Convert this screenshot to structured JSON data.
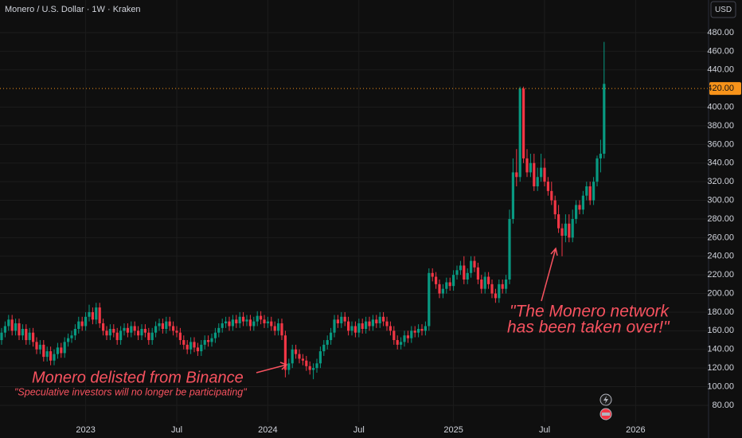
{
  "chart_data": {
    "type": "candlestick",
    "title": "Monero / U.S. Dollar · 1W · Kraken",
    "currency": "USD",
    "up_color": "#089981",
    "down_color": "#f23645",
    "grid": true,
    "ylim": [
      62,
      515
    ],
    "yticks": [
      {
        "value": 80,
        "label": "80.00"
      },
      {
        "value": 100,
        "label": "100.00"
      },
      {
        "value": 120,
        "label": "120.00"
      },
      {
        "value": 140,
        "label": "140.00"
      },
      {
        "value": 160,
        "label": "160.00"
      },
      {
        "value": 180,
        "label": "180.00"
      },
      {
        "value": 200,
        "label": "200.00"
      },
      {
        "value": 220,
        "label": "220.00"
      },
      {
        "value": 240,
        "label": "240.00"
      },
      {
        "value": 260,
        "label": "260.00"
      },
      {
        "value": 280,
        "label": "280.00"
      },
      {
        "value": 300,
        "label": "300.00"
      },
      {
        "value": 320,
        "label": "320.00"
      },
      {
        "value": 340,
        "label": "340.00"
      },
      {
        "value": 360,
        "label": "360.00"
      },
      {
        "value": 380,
        "label": "380.00"
      },
      {
        "value": 400,
        "label": "400.00"
      },
      {
        "value": 440,
        "label": "440.00"
      },
      {
        "value": 460,
        "label": "460.00"
      },
      {
        "value": 480,
        "label": "480.00"
      }
    ],
    "price_line": {
      "value": 420,
      "label": "420.00",
      "color": "#f7931a"
    },
    "annotations": [
      "Monero delisted from Binance",
      "\"Speculative investors will no longer be participating\"",
      "\"The Monero network",
      "has been taken over!\""
    ],
    "categories": [
      null,
      null,
      null,
      null,
      null,
      null,
      null,
      null,
      null,
      null,
      null,
      null,
      null,
      null,
      null,
      null,
      null,
      null,
      null,
      null,
      null,
      null,
      null,
      null,
      "2023",
      null,
      null,
      null,
      null,
      null,
      null,
      null,
      null,
      null,
      null,
      null,
      null,
      null,
      null,
      null,
      null,
      null,
      null,
      null,
      null,
      null,
      null,
      null,
      null,
      null,
      "Jul",
      null,
      null,
      null,
      null,
      null,
      null,
      null,
      null,
      null,
      null,
      null,
      null,
      null,
      null,
      null,
      null,
      null,
      null,
      null,
      null,
      null,
      null,
      null,
      null,
      null,
      "2024",
      null,
      null,
      null,
      null,
      null,
      null,
      null,
      null,
      null,
      null,
      null,
      null,
      null,
      null,
      null,
      null,
      null,
      null,
      null,
      null,
      null,
      null,
      null,
      null,
      null,
      "Jul",
      null,
      null,
      null,
      null,
      null,
      null,
      null,
      null,
      null,
      null,
      null,
      null,
      null,
      null,
      null,
      null,
      null,
      null,
      null,
      null,
      null,
      null,
      null,
      null,
      null,
      null,
      "2025",
      null,
      null,
      null,
      null,
      null,
      null,
      null,
      null,
      null,
      null,
      null,
      null,
      null,
      null,
      null,
      null,
      null,
      null,
      null,
      null,
      null,
      null,
      null,
      null,
      null,
      "Jul",
      null,
      null,
      null,
      null,
      null,
      null,
      null,
      null,
      null,
      null,
      null,
      null,
      null,
      null,
      null,
      null,
      null,
      null,
      null,
      null,
      null,
      null,
      null,
      null,
      null,
      "2026"
    ],
    "open": [
      150,
      158,
      165,
      172,
      160,
      168,
      155,
      162,
      150,
      158,
      148,
      140,
      145,
      132,
      138,
      128,
      135,
      142,
      136,
      148,
      152,
      155,
      162,
      170,
      165,
      175,
      180,
      172,
      185,
      168,
      160,
      155,
      162,
      158,
      150,
      160,
      163,
      158,
      165,
      160,
      155,
      162,
      158,
      150,
      158,
      165,
      168,
      162,
      170,
      165,
      160,
      158,
      150,
      145,
      140,
      148,
      142,
      138,
      145,
      150,
      148,
      152,
      158,
      163,
      168,
      170,
      165,
      172,
      168,
      175,
      170,
      172,
      165,
      170,
      176,
      172,
      168,
      170,
      165,
      160,
      168,
      155,
      118,
      125,
      140,
      135,
      130,
      128,
      122,
      118,
      120,
      125,
      138,
      145,
      150,
      158,
      172,
      168,
      175,
      170,
      160,
      165,
      158,
      168,
      162,
      170,
      165,
      172,
      168,
      175,
      170,
      165,
      160,
      150,
      145,
      148,
      155,
      152,
      160,
      158,
      162,
      160,
      165,
      222,
      218,
      210,
      200,
      205,
      212,
      208,
      220,
      225,
      230,
      215,
      222,
      235,
      228,
      215,
      205,
      218,
      210,
      200,
      195,
      210,
      205,
      215,
      280,
      330,
      325,
      420,
      345,
      330,
      340,
      315,
      325,
      335,
      320,
      310,
      300,
      285,
      270,
      262,
      275,
      260,
      280,
      295,
      290,
      305,
      315,
      300,
      320,
      345,
      350,
      null,
      null,
      null,
      null,
      null,
      null,
      null,
      null,
      null
    ],
    "high": [
      163,
      170,
      177,
      177,
      173,
      173,
      167,
      167,
      163,
      163,
      153,
      150,
      150,
      143,
      143,
      140,
      147,
      147,
      153,
      157,
      160,
      167,
      175,
      175,
      180,
      188,
      185,
      190,
      190,
      173,
      165,
      167,
      167,
      163,
      165,
      168,
      168,
      170,
      170,
      165,
      167,
      167,
      163,
      163,
      170,
      173,
      173,
      175,
      175,
      170,
      165,
      163,
      155,
      150,
      153,
      153,
      147,
      150,
      155,
      155,
      157,
      163,
      168,
      173,
      175,
      175,
      177,
      177,
      180,
      180,
      177,
      177,
      175,
      181,
      181,
      177,
      175,
      175,
      170,
      173,
      173,
      160,
      130,
      145,
      145,
      140,
      135,
      133,
      127,
      125,
      130,
      143,
      150,
      155,
      163,
      177,
      177,
      180,
      180,
      175,
      170,
      170,
      173,
      173,
      175,
      175,
      177,
      177,
      180,
      180,
      175,
      170,
      165,
      155,
      153,
      160,
      160,
      165,
      165,
      167,
      167,
      170,
      227,
      227,
      223,
      215,
      210,
      217,
      217,
      225,
      230,
      235,
      240,
      227,
      240,
      240,
      233,
      220,
      223,
      223,
      215,
      205,
      215,
      215,
      220,
      290,
      345,
      355,
      422,
      422,
      355,
      350,
      350,
      335,
      350,
      345,
      325,
      320,
      305,
      295,
      275,
      285,
      285,
      290,
      300,
      300,
      310,
      320,
      320,
      325,
      348,
      365,
      470,
      null,
      null,
      null,
      null,
      null,
      null,
      null,
      null,
      null
    ],
    "low": [
      145,
      153,
      160,
      155,
      155,
      150,
      150,
      145,
      145,
      143,
      135,
      135,
      127,
      127,
      123,
      123,
      130,
      131,
      131,
      143,
      147,
      150,
      157,
      160,
      160,
      170,
      167,
      167,
      163,
      155,
      150,
      150,
      153,
      145,
      145,
      155,
      153,
      153,
      155,
      150,
      150,
      153,
      145,
      145,
      153,
      160,
      157,
      157,
      160,
      155,
      153,
      145,
      140,
      135,
      135,
      137,
      133,
      133,
      140,
      143,
      143,
      147,
      153,
      158,
      163,
      160,
      160,
      163,
      163,
      165,
      165,
      160,
      160,
      165,
      167,
      163,
      163,
      160,
      155,
      155,
      150,
      110,
      113,
      120,
      130,
      125,
      123,
      117,
      113,
      108,
      115,
      120,
      133,
      140,
      145,
      153,
      163,
      163,
      165,
      155,
      155,
      153,
      153,
      157,
      157,
      160,
      160,
      163,
      163,
      165,
      160,
      155,
      145,
      140,
      140,
      143,
      147,
      147,
      153,
      153,
      155,
      155,
      160,
      213,
      205,
      195,
      195,
      200,
      203,
      203,
      215,
      220,
      210,
      210,
      217,
      223,
      210,
      200,
      200,
      205,
      195,
      190,
      190,
      200,
      200,
      210,
      275,
      315,
      320,
      340,
      325,
      325,
      310,
      310,
      320,
      315,
      305,
      295,
      280,
      265,
      240,
      255,
      255,
      255,
      275,
      285,
      285,
      300,
      295,
      295,
      315,
      330,
      345,
      null,
      null,
      null,
      null,
      null,
      null,
      null,
      null,
      null
    ],
    "close": [
      158,
      165,
      172,
      160,
      168,
      155,
      162,
      150,
      158,
      148,
      140,
      145,
      132,
      138,
      128,
      135,
      142,
      136,
      148,
      152,
      155,
      162,
      170,
      165,
      175,
      180,
      172,
      185,
      168,
      160,
      155,
      162,
      158,
      150,
      160,
      163,
      158,
      165,
      160,
      155,
      162,
      158,
      150,
      158,
      165,
      168,
      162,
      170,
      165,
      160,
      158,
      150,
      145,
      140,
      148,
      142,
      138,
      145,
      150,
      148,
      152,
      158,
      163,
      168,
      170,
      165,
      172,
      168,
      175,
      170,
      172,
      165,
      170,
      176,
      172,
      168,
      170,
      165,
      160,
      168,
      155,
      118,
      125,
      140,
      135,
      130,
      128,
      122,
      118,
      120,
      125,
      138,
      145,
      150,
      158,
      172,
      168,
      175,
      170,
      160,
      165,
      158,
      168,
      162,
      170,
      165,
      172,
      168,
      175,
      170,
      165,
      160,
      150,
      145,
      148,
      155,
      152,
      160,
      158,
      162,
      160,
      165,
      222,
      218,
      210,
      200,
      205,
      212,
      208,
      220,
      225,
      230,
      215,
      222,
      235,
      228,
      215,
      205,
      218,
      210,
      200,
      195,
      210,
      205,
      215,
      280,
      330,
      325,
      420,
      345,
      330,
      340,
      315,
      325,
      335,
      320,
      310,
      300,
      285,
      270,
      262,
      275,
      260,
      280,
      295,
      290,
      305,
      315,
      300,
      320,
      345,
      350,
      425,
      null,
      null,
      null,
      null,
      null,
      null,
      null,
      null,
      null
    ]
  }
}
